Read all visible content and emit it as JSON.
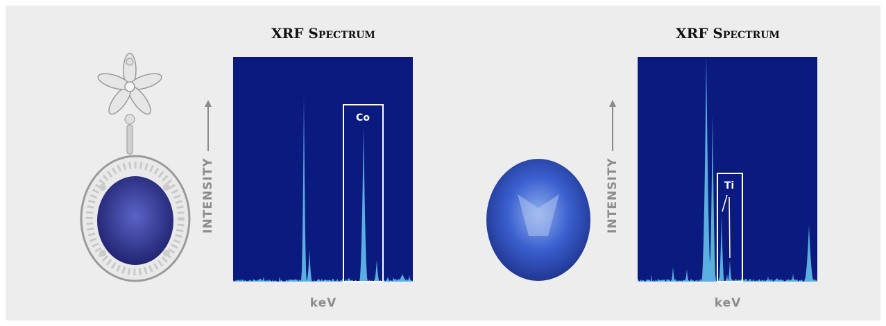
{
  "panels": [
    {
      "title": "XRF Spectrum",
      "y_label": "INTENSITY",
      "x_label": "keV",
      "element_label": "Co"
    },
    {
      "title": "XRF Spectrum",
      "y_label": "INTENSITY",
      "x_label": "keV",
      "element_label": "Ti"
    }
  ]
}
